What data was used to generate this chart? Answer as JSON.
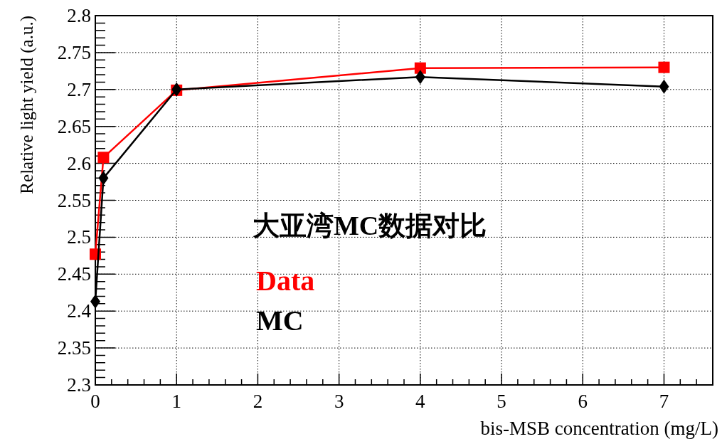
{
  "chart_data": {
    "type": "line",
    "title": "大亚湾MC数据对比",
    "xlabel": "bis-MSB concentration (mg/L)",
    "ylabel": "Relative light yield (a.u.)",
    "xlim": [
      0,
      7.6
    ],
    "xticks": [
      0,
      1,
      2,
      3,
      4,
      5,
      6,
      7
    ],
    "ylim": [
      2.3,
      2.8
    ],
    "yticks": [
      2.3,
      2.35,
      2.4,
      2.45,
      2.5,
      2.55,
      2.6,
      2.65,
      2.7,
      2.75,
      2.8
    ],
    "grid": true,
    "legend": "left",
    "series": [
      {
        "name": "Data",
        "color": "#ff0000",
        "marker": "square",
        "x": [
          0,
          0.1,
          1,
          4,
          7
        ],
        "values": [
          2.477,
          2.608,
          2.699,
          2.729,
          2.73
        ]
      },
      {
        "name": "MC",
        "color": "#000000",
        "marker": "diamond",
        "x": [
          0,
          0.1,
          1,
          4,
          7
        ],
        "values": [
          2.413,
          2.58,
          2.7,
          2.717,
          2.704
        ]
      }
    ]
  }
}
